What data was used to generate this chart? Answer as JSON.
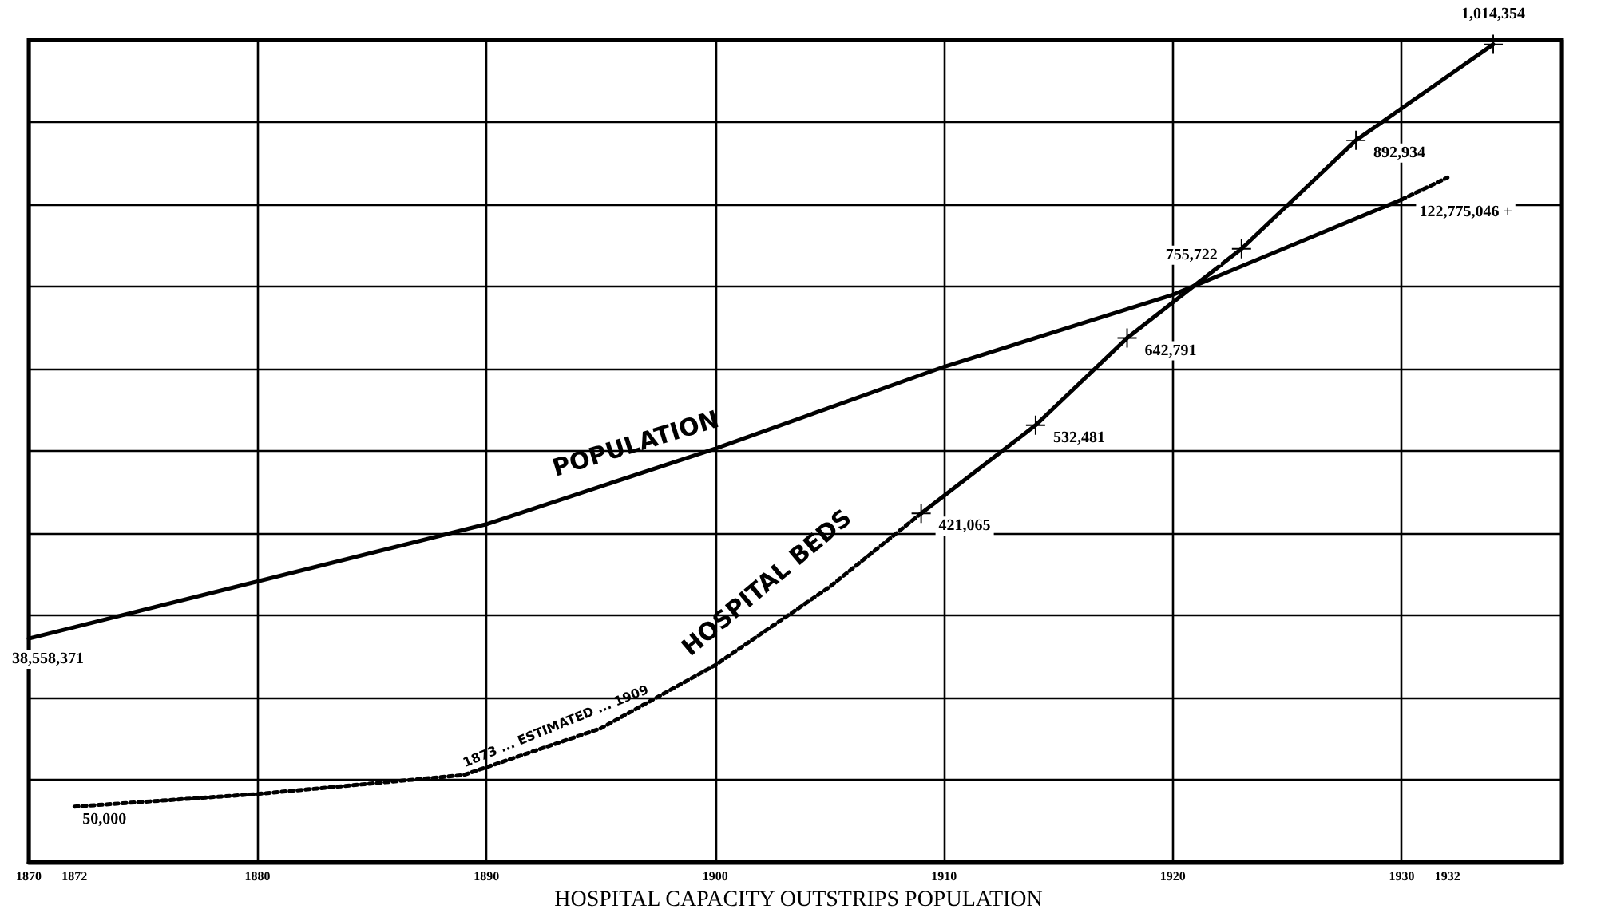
{
  "chart_data": {
    "type": "line",
    "title": "HOSPITAL CAPACITY OUTSTRIPS POPULATION",
    "xlim": [
      1870,
      1937
    ],
    "xticks": [
      1870,
      1872,
      1880,
      1890,
      1900,
      1910,
      1920,
      1930,
      1932
    ],
    "ylim": [
      -20000,
      1020000
    ],
    "yticks": [
      {
        "value": -20000,
        "label": null
      },
      {
        "value": 84000,
        "label": null
      },
      {
        "value": 188000,
        "label": null
      },
      {
        "value": 292000,
        "label": null
      },
      {
        "value": 396000,
        "label": null
      },
      {
        "value": 500000,
        "label": null
      },
      {
        "value": 604000,
        "label": null
      },
      {
        "value": 708000,
        "label": null
      },
      {
        "value": 812000,
        "label": null
      },
      {
        "value": 916000,
        "label": null
      },
      {
        "value": 1020000,
        "label": null
      }
    ],
    "y2lim": [
      -4300000,
      153400000
    ],
    "tick_labels": "x",
    "grid": true,
    "series": [
      {
        "color": "#000000",
        "axis": "y2",
        "line_style": "solid",
        "marker": "none",
        "x": [
          1870,
          1890,
          1900,
          1910,
          1920,
          1930
        ],
        "values": [
          38558371,
          60500000,
          75000000,
          90700000,
          104500000,
          122775046
        ],
        "value_labels": [
          "38,558,371",
          null,
          null,
          null,
          null,
          "122,775,046 +"
        ]
      },
      {
        "color": "#000000",
        "axis": "y2",
        "line_style": "dotted",
        "marker": "none",
        "x": [
          1930,
          1932
        ],
        "values": [
          122775046,
          127000000
        ]
      },
      {
        "color": "#000000",
        "line_style": "dotted",
        "marker": "none",
        "x": [
          1872,
          1880,
          1889,
          1895,
          1900,
          1905,
          1909
        ],
        "values": [
          50000,
          66000,
          90000,
          149000,
          229000,
          328000,
          421065
        ],
        "value_labels": [
          "50,000",
          null,
          null,
          null,
          null,
          null,
          null
        ]
      },
      {
        "color": "#000000",
        "line_style": "solid",
        "marker": "cross",
        "x": [
          1909,
          1914,
          1918,
          1923,
          1928,
          1934
        ],
        "values": [
          421065,
          532481,
          642791,
          755722,
          892934,
          1014354
        ],
        "value_labels": [
          "421,065",
          "532,481",
          "642,791",
          "755,722",
          "892,934",
          "1,014,354"
        ]
      }
    ],
    "annotations": [
      "POPULATION",
      "HOSPITAL BEDS",
      "1873 ... ESTIMATED ... 1909"
    ]
  }
}
